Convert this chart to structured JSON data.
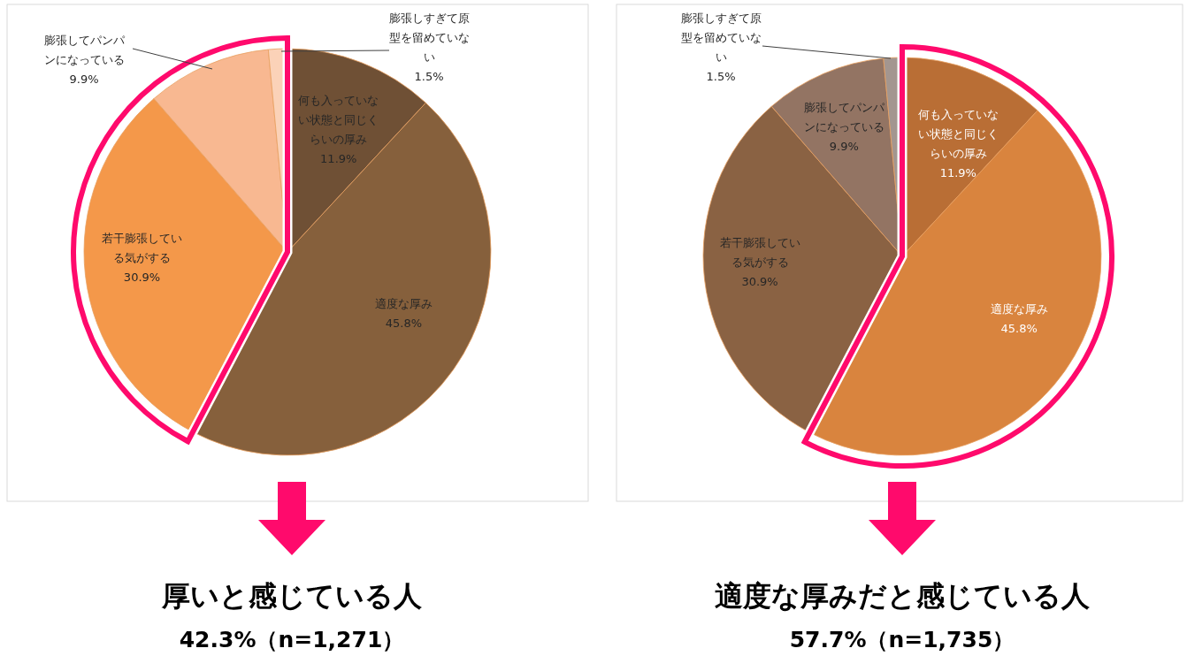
{
  "chart_data": [
    {
      "type": "pie",
      "categories": [
        "何も入っていない状態と同じくらいの厚み",
        "適度な厚み",
        "若干膨張している気がする",
        "膨張してパンパンになっている",
        "膨張しすぎて原型を留めていない"
      ],
      "values": [
        11.9,
        45.8,
        30.9,
        9.9,
        1.5
      ],
      "colors": [
        "#6f5035",
        "#86603c",
        "#f4984a",
        "#f8b891",
        "#fbd2b8"
      ],
      "value_labels": [
        "11.9%",
        "45.8%",
        "30.9%",
        "9.9%",
        "1.5%"
      ],
      "annotations": [
        "厚いと感じている人",
        "42.3%（n=1,271）"
      ]
    },
    {
      "type": "pie",
      "categories": [
        "何も入っていない状態と同じくらいの厚み",
        "適度な厚み",
        "若干膨張している気がする",
        "膨張してパンパンになっている",
        "膨張しすぎて原型を留めていない"
      ],
      "values": [
        11.9,
        45.8,
        30.9,
        9.9,
        1.5
      ],
      "colors": [
        "#b96e35",
        "#d9843e",
        "#8a6243",
        "#937463",
        "#a39690"
      ],
      "value_labels": [
        "11.9%",
        "45.8%",
        "30.9%",
        "9.9%",
        "1.5%"
      ],
      "annotations": [
        "適度な厚みだと感じている人",
        "57.7%（n=1,735）"
      ]
    }
  ]
}
